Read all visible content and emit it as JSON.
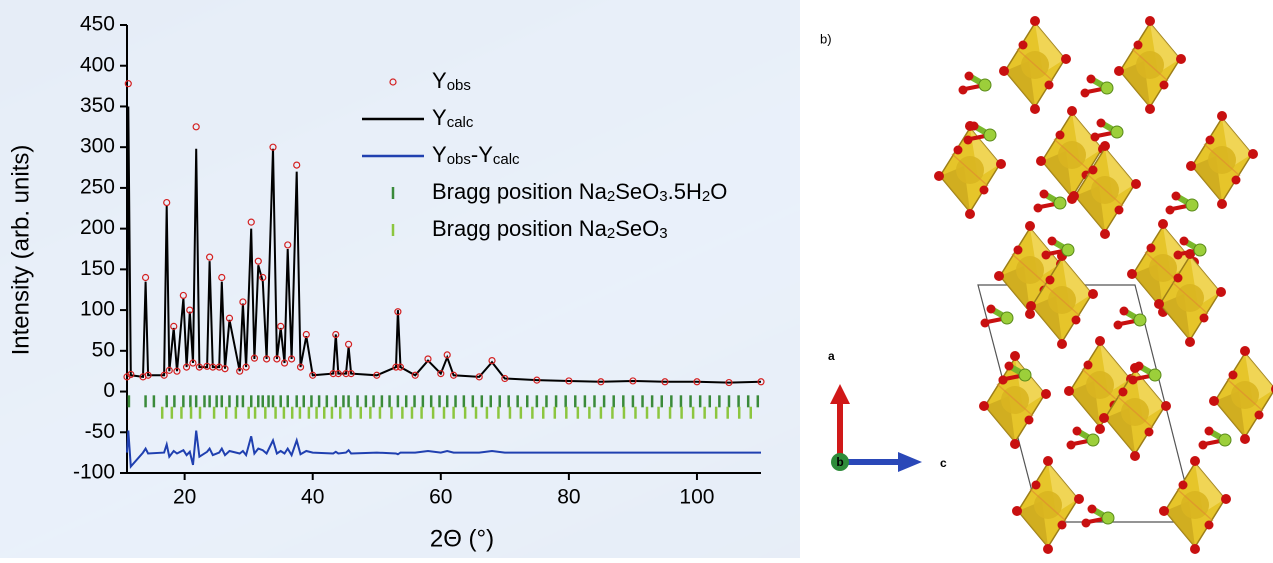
{
  "chart_data": {
    "type": "rietveld",
    "xlabel": "2Θ (°)",
    "ylabel": "Intensity (arb. units)",
    "xlim": [
      11,
      110
    ],
    "ylim": [
      -100,
      450
    ],
    "xticks": [
      20,
      40,
      60,
      80,
      100
    ],
    "yticks": [
      -100,
      -50,
      0,
      50,
      100,
      150,
      200,
      250,
      300,
      350,
      400,
      450
    ],
    "x": [
      11,
      11.2,
      11.6,
      13.5,
      13.9,
      14.3,
      16.8,
      17.2,
      17.6,
      18.3,
      18.8,
      19.8,
      20.3,
      20.8,
      21.3,
      21.8,
      22.3,
      23.5,
      23.9,
      24.4,
      25.4,
      25.8,
      26.3,
      27.0,
      28.6,
      29.1,
      29.6,
      30.4,
      30.9,
      31.5,
      32.2,
      32.8,
      33.8,
      34.4,
      35.0,
      35.6,
      36.1,
      36.7,
      37.5,
      38.1,
      39.0,
      40,
      43.2,
      43.6,
      44.0,
      45.2,
      45.6,
      46,
      50,
      53.0,
      53.3,
      53.7,
      56,
      58,
      60,
      61,
      62,
      66,
      68,
      70,
      75,
      80,
      85,
      90,
      95,
      100,
      105,
      110
    ],
    "series": [
      {
        "name": "Yobs",
        "color": "#d42020",
        "style": "markers",
        "values": [
          18,
          378,
          21,
          18,
          140,
          20,
          20,
          232,
          26,
          80,
          25,
          118,
          30,
          100,
          35,
          325,
          30,
          31,
          165,
          30,
          30,
          140,
          28,
          90,
          25,
          110,
          30,
          208,
          41,
          160,
          140,
          40,
          300,
          40,
          80,
          35,
          180,
          40,
          278,
          30,
          70,
          20,
          22,
          70,
          22,
          22,
          58,
          22,
          20,
          30,
          98,
          30,
          20,
          40,
          22,
          45,
          20,
          18,
          38,
          16,
          14,
          13,
          12,
          13,
          12,
          12,
          11,
          12
        ]
      },
      {
        "name": "Ycalc",
        "color": "#000000",
        "style": "line",
        "values": [
          18,
          350,
          20,
          18,
          135,
          20,
          20,
          228,
          25,
          78,
          25,
          115,
          30,
          98,
          35,
          298,
          30,
          30,
          160,
          30,
          30,
          135,
          28,
          88,
          25,
          108,
          30,
          200,
          40,
          155,
          135,
          40,
          298,
          40,
          78,
          35,
          175,
          40,
          270,
          30,
          68,
          20,
          22,
          70,
          22,
          22,
          55,
          22,
          20,
          30,
          100,
          30,
          20,
          38,
          22,
          42,
          20,
          18,
          36,
          16,
          14,
          13,
          12,
          13,
          12,
          12,
          11,
          12
        ]
      },
      {
        "name": "Yobs-Ycalc",
        "color": "#2040b0",
        "style": "line",
        "values": [
          -75,
          -48,
          -92,
          -75,
          -70,
          -76,
          -75,
          -65,
          -80,
          -73,
          -76,
          -72,
          -78,
          -74,
          -90,
          -48,
          -80,
          -74,
          -70,
          -78,
          -75,
          -70,
          -78,
          -73,
          -76,
          -73,
          -78,
          -55,
          -76,
          -70,
          -72,
          -76,
          -60,
          -76,
          -73,
          -76,
          -70,
          -78,
          -60,
          -77,
          -73,
          -75,
          -76,
          -74,
          -76,
          -75,
          -72,
          -76,
          -75,
          -76,
          -77,
          -75,
          -75,
          -73,
          -75,
          -73,
          -75,
          -75,
          -73,
          -75,
          -75,
          -75,
          -75,
          -75,
          -75,
          -75,
          -75,
          -75
        ]
      }
    ],
    "bragg": [
      {
        "name": "Bragg position Na2SeO3.5H2O",
        "color": "#3a8a3a",
        "level": -12,
        "positions": [
          11.3,
          13.9,
          15.2,
          17.2,
          18.4,
          19.8,
          20.9,
          21.8,
          23.1,
          23.9,
          25.0,
          25.8,
          27.0,
          28.2,
          29.1,
          30.4,
          31.5,
          32.2,
          33.1,
          33.8,
          35.0,
          36.1,
          37.5,
          38.6,
          39.8,
          41.0,
          42.2,
          43.6,
          44.8,
          45.6,
          47.0,
          48.3,
          49.5,
          50.8,
          52.0,
          53.3,
          54.6,
          55.9,
          57.2,
          58.5,
          59.8,
          61.0,
          62.3,
          63.6,
          65.0,
          66.4,
          67.8,
          69.2,
          70.6,
          72.0,
          73.5,
          75.0,
          76.5,
          78.0,
          79.5,
          81.0,
          82.5,
          84.0,
          85.5,
          87.0,
          88.5,
          90.0,
          91.5,
          93.0,
          94.5,
          96.0,
          97.5,
          99.0,
          100.5,
          102.0,
          103.5,
          105.0,
          106.5,
          108.0,
          109.5
        ]
      },
      {
        "name": "Bragg position Na2SeO3",
        "color": "#8cc63f",
        "level": -26,
        "positions": [
          16.5,
          18.0,
          19.5,
          21.0,
          22.4,
          24.6,
          26.5,
          28.0,
          30.0,
          31.0,
          32.6,
          34.2,
          35.5,
          36.8,
          38.0,
          39.4,
          40.6,
          41.8,
          43.0,
          44.3,
          45.9,
          47.5,
          49.0,
          50.5,
          52.3,
          54.0,
          55.5,
          57.0,
          58.8,
          60.5,
          62.0,
          63.8,
          65.5,
          67.2,
          69.0,
          70.8,
          72.5,
          74.3,
          76.0,
          77.8,
          79.6,
          81.4,
          83.2,
          85.0,
          86.8,
          88.6,
          90.4,
          92.2,
          94.0,
          95.8,
          97.6,
          99.4,
          101.2,
          103.0,
          104.8,
          106.6,
          108.4
        ]
      }
    ]
  },
  "panel_b": {
    "label": "b)",
    "axes": [
      "a",
      "b",
      "c"
    ]
  }
}
